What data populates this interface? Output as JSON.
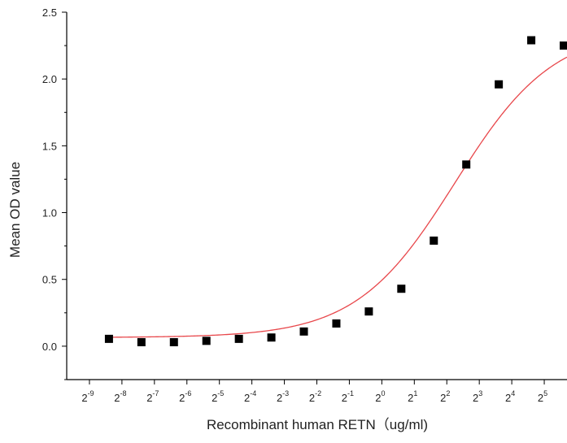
{
  "chart_data": {
    "type": "scatter",
    "title": "",
    "xlabel": "Recombinant human  RETN（ug/ml)",
    "ylabel": "Mean OD value",
    "x_scale": "log2",
    "xlim_exp": [
      -9.7,
      5.7
    ],
    "ylim": [
      -0.25,
      2.5
    ],
    "x_ticks": [
      {
        "base": "2",
        "exp": "-9",
        "value": -9
      },
      {
        "base": "2",
        "exp": "-8",
        "value": -8
      },
      {
        "base": "2",
        "exp": "-7",
        "value": -7
      },
      {
        "base": "2",
        "exp": "-6",
        "value": -6
      },
      {
        "base": "2",
        "exp": "-5",
        "value": -5
      },
      {
        "base": "2",
        "exp": "-4",
        "value": -4
      },
      {
        "base": "2",
        "exp": "-3",
        "value": -3
      },
      {
        "base": "2",
        "exp": "-2",
        "value": -2
      },
      {
        "base": "2",
        "exp": "-1",
        "value": -1
      },
      {
        "base": "2",
        "exp": "0",
        "value": 0
      },
      {
        "base": "2",
        "exp": "1",
        "value": 1
      },
      {
        "base": "2",
        "exp": "2",
        "value": 2
      },
      {
        "base": "2",
        "exp": "3",
        "value": 3
      },
      {
        "base": "2",
        "exp": "4",
        "value": 4
      },
      {
        "base": "2",
        "exp": "5",
        "value": 5
      }
    ],
    "y_ticks": [
      {
        "label": "0.0",
        "value": 0.0
      },
      {
        "label": "0.5",
        "value": 0.5
      },
      {
        "label": "1.0",
        "value": 1.0
      },
      {
        "label": "1.5",
        "value": 1.5
      },
      {
        "label": "2.0",
        "value": 2.0
      },
      {
        "label": "2.5",
        "value": 2.5
      }
    ],
    "series": [
      {
        "marker": "square",
        "color": "#000000",
        "points": [
          {
            "x_exp": -8.4,
            "y": 0.055
          },
          {
            "x_exp": -7.4,
            "y": 0.03
          },
          {
            "x_exp": -6.4,
            "y": 0.03
          },
          {
            "x_exp": -5.4,
            "y": 0.04
          },
          {
            "x_exp": -4.4,
            "y": 0.055
          },
          {
            "x_exp": -3.4,
            "y": 0.065
          },
          {
            "x_exp": -2.4,
            "y": 0.11
          },
          {
            "x_exp": -1.4,
            "y": 0.17
          },
          {
            "x_exp": -0.4,
            "y": 0.26
          },
          {
            "x_exp": 0.6,
            "y": 0.43
          },
          {
            "x_exp": 1.6,
            "y": 0.79
          },
          {
            "x_exp": 2.6,
            "y": 1.36
          },
          {
            "x_exp": 3.6,
            "y": 1.96
          },
          {
            "x_exp": 4.6,
            "y": 2.29
          },
          {
            "x_exp": 5.6,
            "y": 2.25
          }
        ]
      }
    ],
    "fit_curve": {
      "model": "4PL",
      "color": "#e8474b",
      "bottom": 0.065,
      "top": 2.38,
      "log2_ec50": 2.25,
      "hill": 0.95
    },
    "grid": false,
    "legend": "none"
  }
}
